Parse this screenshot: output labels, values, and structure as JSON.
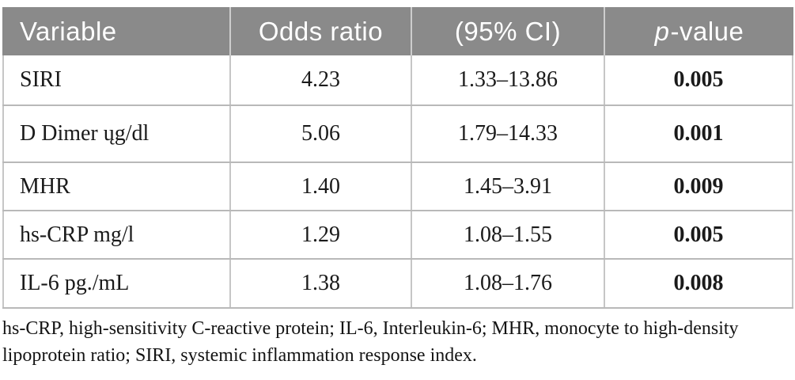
{
  "colors": {
    "header_bg": "#8a8a8a",
    "header_text": "#ffffff",
    "body_text": "#1a1a1a",
    "border": "#bdbdbd"
  },
  "table": {
    "header": {
      "variable": "Variable",
      "odds_ratio": "Odds ratio",
      "ci": "(95% CI)",
      "p_italic": "p",
      "p_rest": "-value"
    },
    "rows": [
      {
        "variable": "SIRI",
        "odds_ratio": "4.23",
        "ci": "1.33–13.86",
        "p_value": "0.005"
      },
      {
        "variable": "D Dimer ųg/dl",
        "odds_ratio": "5.06",
        "ci": "1.79–14.33",
        "p_value": "0.001"
      },
      {
        "variable": "MHR",
        "odds_ratio": "1.40",
        "ci": "1.45–3.91",
        "p_value": "0.009"
      },
      {
        "variable": "hs-CRP mg/l",
        "odds_ratio": "1.29",
        "ci": "1.08–1.55",
        "p_value": "0.005"
      },
      {
        "variable": "IL-6 pg./mL",
        "odds_ratio": "1.38",
        "ci": "1.08–1.76",
        "p_value": "0.008"
      }
    ],
    "footnote": "hs-CRP, high-sensitivity C-reactive protein; IL-6, Interleukin-6; MHR, monocyte to high-density lipoprotein ratio; SIRI, systemic inflammation response index."
  }
}
